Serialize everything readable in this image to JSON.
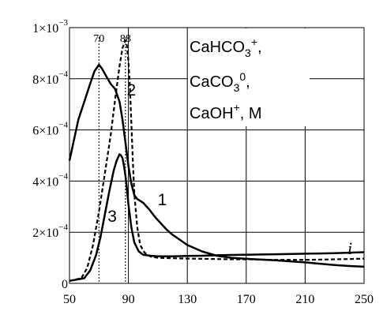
{
  "chart_data": {
    "type": "line",
    "title": "",
    "xlabel": "i",
    "ylabel": "",
    "xlim": [
      50,
      250
    ],
    "ylim": [
      0,
      0.001
    ],
    "x_ticks": [
      50,
      90,
      130,
      170,
      210,
      250
    ],
    "x_tick_labels": [
      "50",
      "90",
      "130",
      "170",
      "210",
      "250"
    ],
    "y_ticks": [
      0,
      0.0002,
      0.0004,
      0.0006,
      0.0008,
      0.001
    ],
    "y_tick_labels": [
      {
        "mantissa": "0",
        "exponent": ""
      },
      {
        "mantissa": "2×10",
        "exponent": "−4"
      },
      {
        "mantissa": "4×10",
        "exponent": "−4"
      },
      {
        "mantissa": "6×10",
        "exponent": "−4"
      },
      {
        "mantissa": "8×10",
        "exponent": "−4"
      },
      {
        "mantissa": "1×10",
        "exponent": "−3"
      }
    ],
    "grid": true,
    "legend_box": {
      "line1": {
        "base": "CaHCO",
        "sub": "3",
        "sup": "+",
        "tail": ","
      },
      "line2": {
        "base": "CaCO",
        "sub": "3",
        "sup": "0",
        "tail": ","
      },
      "line3": {
        "base": "CaOH",
        "sup": "+",
        "tail": ", M"
      }
    },
    "markers": [
      {
        "x": 70,
        "label": "70"
      },
      {
        "x": 88,
        "label": "88"
      }
    ],
    "curve_labels": [
      {
        "text": "1",
        "x": 113,
        "y": 0.00033
      },
      {
        "text": "2",
        "x": 92,
        "y": 0.00076
      },
      {
        "text": "3",
        "x": 79,
        "y": 0.000265
      }
    ],
    "series": [
      {
        "id": "1",
        "style": "solid",
        "x": [
          50,
          53,
          56,
          60,
          64,
          67,
          70,
          72,
          75,
          78,
          81,
          84,
          86,
          88,
          90,
          92,
          94,
          96,
          100,
          104,
          108,
          112,
          116,
          120,
          125,
          130,
          140,
          150,
          160,
          170,
          180,
          190,
          200,
          210,
          220,
          230,
          240,
          250
        ],
        "y": [
          0.00048,
          0.00056,
          0.00064,
          0.00071,
          0.00078,
          0.00083,
          0.000855,
          0.00084,
          0.00081,
          0.00078,
          0.00076,
          0.00071,
          0.00064,
          0.00055,
          0.00046,
          0.00039,
          0.000345,
          0.00033,
          0.000315,
          0.00029,
          0.00026,
          0.000235,
          0.00021,
          0.00019,
          0.00017,
          0.00015,
          0.000125,
          0.000108,
          0.0001,
          9.6e-05,
          9.3e-05,
          9e-05,
          8.6e-05,
          8.2e-05,
          7.7e-05,
          7.2e-05,
          6.8e-05,
          6.5e-05
        ]
      },
      {
        "id": "2",
        "style": "dashed",
        "x": [
          50,
          58,
          62,
          66,
          70,
          74,
          78,
          81,
          84,
          86,
          88,
          89,
          90,
          91,
          92,
          93,
          94,
          96,
          98,
          101,
          105,
          110,
          120,
          130,
          140,
          150,
          160,
          170,
          180,
          190,
          200,
          210,
          220,
          230,
          240,
          250
        ],
        "y": [
          1e-05,
          2e-05,
          6e-05,
          0.00015,
          0.00028,
          0.00043,
          0.00058,
          0.00072,
          0.00085,
          0.00092,
          0.00095,
          0.00093,
          0.00087,
          0.00077,
          0.00063,
          0.00048,
          0.00035,
          0.00022,
          0.00015,
          0.00012,
          0.000105,
          0.0001,
          9.8e-05,
          9.7e-05,
          9.6e-05,
          9.5e-05,
          9.4e-05,
          9.4e-05,
          9.3e-05,
          9.2e-05,
          9.2e-05,
          9.2e-05,
          9.3e-05,
          9.4e-05,
          9.5e-05,
          9.7e-05
        ]
      },
      {
        "id": "3",
        "style": "solid",
        "x": [
          50,
          60,
          64,
          68,
          71,
          74,
          77,
          80,
          82,
          84,
          85,
          86,
          87,
          88,
          89,
          90,
          92,
          94,
          97,
          100,
          105,
          110,
          120,
          130,
          140,
          150,
          160,
          170,
          180,
          190,
          200,
          210,
          220,
          230,
          240,
          250
        ],
        "y": [
          1e-05,
          2e-05,
          5e-05,
          0.00011,
          0.00018,
          0.00027,
          0.00036,
          0.00044,
          0.00048,
          0.000505,
          0.0005,
          0.00049,
          0.00046,
          0.00042,
          0.00037,
          0.00031,
          0.00022,
          0.00016,
          0.000125,
          0.000112,
          0.000108,
          0.000106,
          0.000106,
          0.000107,
          0.000108,
          0.00011,
          0.000111,
          0.000112,
          0.000113,
          0.000114,
          0.000115,
          0.000116,
          0.000117,
          0.000118,
          0.00012,
          0.000122
        ]
      }
    ]
  }
}
